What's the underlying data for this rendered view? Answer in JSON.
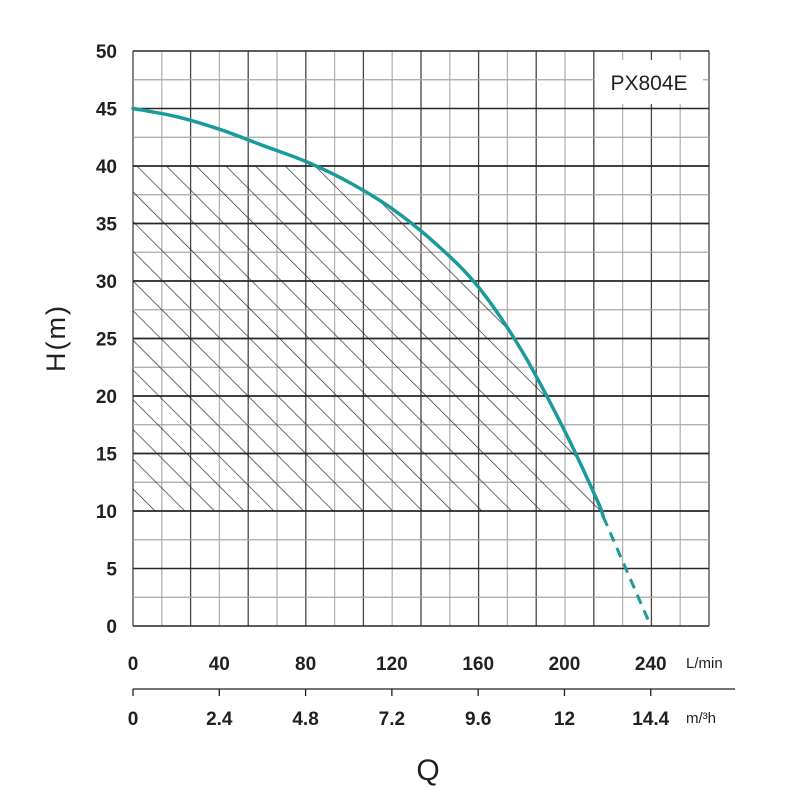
{
  "chart_data": {
    "type": "line",
    "title": "PX804E",
    "ylabel": "H(m)",
    "xlabel": "Q",
    "xlim": [
      0,
      267
    ],
    "ylim": [
      0,
      50
    ],
    "grid": true,
    "y_ticks": [
      "0",
      "5",
      "10",
      "15",
      "20",
      "25",
      "30",
      "35",
      "40",
      "45",
      "50"
    ],
    "x_ticks_lmin": [
      "0",
      "40",
      "80",
      "120",
      "160",
      "200",
      "240"
    ],
    "x_unit_lmin": "L/min",
    "x_ticks_m3h": [
      "0",
      "2.4",
      "4.8",
      "7.2",
      "9.6",
      "12",
      "14.4"
    ],
    "x_unit_m3h": "m/³h",
    "curve_color": "#1a9a9a",
    "series": [
      {
        "name": "H-Q curve",
        "style": "solid",
        "x": [
          0,
          20,
          40,
          60,
          80,
          100,
          120,
          140,
          160,
          180,
          200,
          215,
          218
        ],
        "y": [
          45,
          44.3,
          43.2,
          41.8,
          40.4,
          38.6,
          36.3,
          33.3,
          29.5,
          24,
          17,
          11,
          9.5
        ]
      },
      {
        "name": "H-Q curve extension",
        "style": "dashed",
        "x": [
          218,
          240
        ],
        "y": [
          9.5,
          0
        ]
      }
    ],
    "recommended_range": {
      "h_min": 10,
      "h_max": 40,
      "fill": "hatched"
    }
  }
}
